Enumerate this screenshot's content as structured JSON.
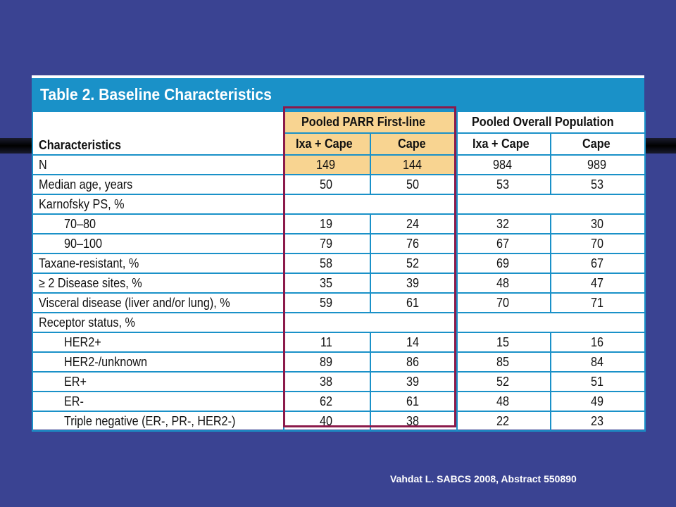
{
  "title": "Table 2. Baseline Characteristics",
  "header": {
    "characteristics": "Characteristics",
    "group1": "Pooled PARR First-line",
    "group2": "Pooled Overall Population",
    "col_a": "Ixa + Cape",
    "col_b": "Cape"
  },
  "rows": [
    {
      "label": "N",
      "v": [
        "149",
        "144",
        "984",
        "989"
      ]
    },
    {
      "label": "Median age, years",
      "v": [
        "50",
        "50",
        "53",
        "53"
      ]
    },
    {
      "label": "Karnofsky PS, %",
      "v": [
        "",
        "",
        "",
        ""
      ]
    },
    {
      "label": "70–80",
      "v": [
        "19",
        "24",
        "32",
        "30"
      ]
    },
    {
      "label": "90–100",
      "v": [
        "79",
        "76",
        "67",
        "70"
      ]
    },
    {
      "label": "Taxane-resistant, %",
      "v": [
        "58",
        "52",
        "69",
        "67"
      ]
    },
    {
      "label": "≥ 2 Disease sites, %",
      "v": [
        "35",
        "39",
        "48",
        "47"
      ]
    },
    {
      "label": "Visceral disease (liver and/or lung), %",
      "v": [
        "59",
        "61",
        "70",
        "71"
      ]
    },
    {
      "label": "Receptor status, %",
      "v": [
        "",
        "",
        "",
        ""
      ]
    },
    {
      "label": "HER2+",
      "v": [
        "11",
        "14",
        "15",
        "16"
      ]
    },
    {
      "label": "HER2-/unknown",
      "v": [
        "89",
        "86",
        "85",
        "84"
      ]
    },
    {
      "label": "ER+",
      "v": [
        "38",
        "39",
        "52",
        "51"
      ]
    },
    {
      "label": "ER-",
      "v": [
        "62",
        "61",
        "48",
        "49"
      ]
    },
    {
      "label": "Triple negative (ER-, PR-, HER2-)",
      "v": [
        "40",
        "38",
        "22",
        "23"
      ]
    }
  ],
  "citation": "Vahdat L. SABCS 2008, Abstract 550890",
  "colors": {
    "background": "#3a4392",
    "title_bar": "#1a91c8",
    "highlight": "#f8d491",
    "highlight_border": "#8b1a4b"
  }
}
